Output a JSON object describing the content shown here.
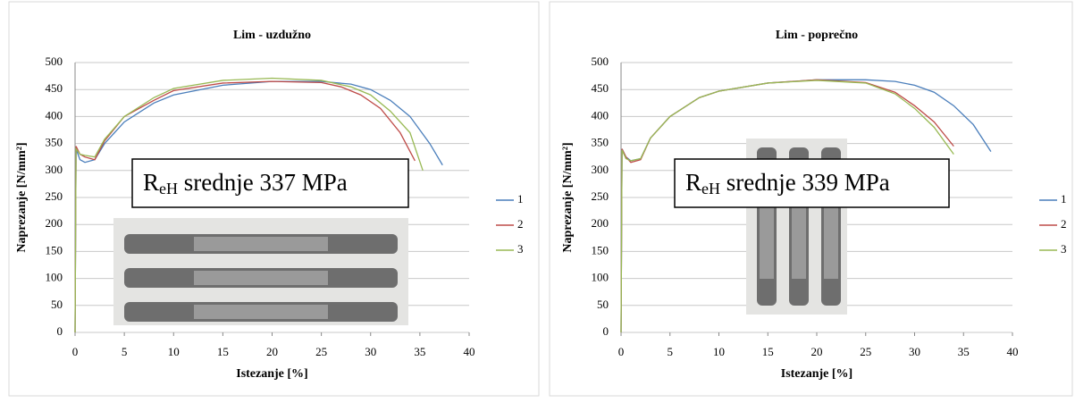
{
  "chart_data": [
    {
      "type": "line",
      "title": "Lim - uzdužno",
      "x_label": "Istezanje [%]",
      "y_label": "Naprezanje [N/mm²]",
      "xlim": [
        0,
        40
      ],
      "xticks": [
        0,
        5,
        10,
        15,
        20,
        25,
        30,
        35,
        40
      ],
      "ylim": [
        0,
        500
      ],
      "yticks": [
        0,
        50,
        100,
        150,
        200,
        250,
        300,
        350,
        400,
        450,
        500
      ],
      "grid": true,
      "legend": "right",
      "annotation": {
        "main": "R",
        "sub": "eH",
        "rest": " srednje 337 MPa"
      },
      "series": [
        {
          "name": "1",
          "color": "#4a7ebb",
          "x": [
            0,
            0.1,
            0.5,
            1,
            2,
            3,
            5,
            8,
            10,
            15,
            20,
            25,
            28,
            30,
            32,
            34,
            36,
            37.3
          ],
          "values": [
            0,
            340,
            320,
            315,
            320,
            350,
            390,
            425,
            440,
            458,
            465,
            465,
            460,
            450,
            430,
            400,
            350,
            310
          ]
        },
        {
          "name": "2",
          "color": "#be4b48",
          "x": [
            0,
            0.1,
            0.5,
            1,
            2,
            3,
            5,
            8,
            10,
            15,
            20,
            25,
            27,
            29,
            31,
            33,
            34.5
          ],
          "values": [
            0,
            345,
            330,
            325,
            320,
            355,
            400,
            430,
            448,
            462,
            465,
            463,
            455,
            440,
            415,
            370,
            318
          ]
        },
        {
          "name": "3",
          "color": "#98b954",
          "x": [
            0,
            0.1,
            0.5,
            1,
            2,
            3,
            5,
            8,
            10,
            15,
            20,
            25,
            28,
            30,
            32,
            34,
            35.3
          ],
          "values": [
            0,
            340,
            330,
            328,
            325,
            358,
            400,
            435,
            452,
            467,
            471,
            467,
            455,
            440,
            410,
            370,
            300
          ]
        }
      ]
    },
    {
      "type": "line",
      "title": "Lim - poprečno",
      "x_label": "Istezanje [%]",
      "y_label": "Naprezanje [N/mm²]",
      "xlim": [
        0,
        40
      ],
      "xticks": [
        0,
        5,
        10,
        15,
        20,
        25,
        30,
        35,
        40
      ],
      "ylim": [
        0,
        500
      ],
      "yticks": [
        0,
        50,
        100,
        150,
        200,
        250,
        300,
        350,
        400,
        450,
        500
      ],
      "grid": true,
      "legend": "right",
      "annotation": {
        "main": "R",
        "sub": "eH",
        "rest": " srednje 339 MPa"
      },
      "series": [
        {
          "name": "1",
          "color": "#4a7ebb",
          "x": [
            0,
            0.1,
            0.5,
            1,
            2,
            3,
            5,
            8,
            10,
            15,
            20,
            25,
            28,
            30,
            32,
            34,
            36,
            37.8
          ],
          "values": [
            0,
            340,
            325,
            318,
            322,
            360,
            400,
            435,
            447,
            462,
            468,
            468,
            465,
            458,
            445,
            420,
            385,
            335
          ]
        },
        {
          "name": "2",
          "color": "#be4b48",
          "x": [
            0,
            0.1,
            0.5,
            1,
            2,
            3,
            5,
            8,
            10,
            15,
            20,
            25,
            28,
            30,
            32,
            34
          ],
          "values": [
            0,
            340,
            325,
            315,
            320,
            360,
            400,
            435,
            447,
            462,
            468,
            463,
            445,
            420,
            390,
            345
          ]
        },
        {
          "name": "3",
          "color": "#98b954",
          "x": [
            0,
            0.1,
            0.5,
            1,
            2,
            3,
            5,
            8,
            10,
            15,
            20,
            25,
            28,
            30,
            32,
            34
          ],
          "values": [
            0,
            338,
            322,
            318,
            322,
            360,
            400,
            435,
            447,
            462,
            467,
            462,
            442,
            415,
            380,
            330
          ]
        }
      ]
    }
  ]
}
